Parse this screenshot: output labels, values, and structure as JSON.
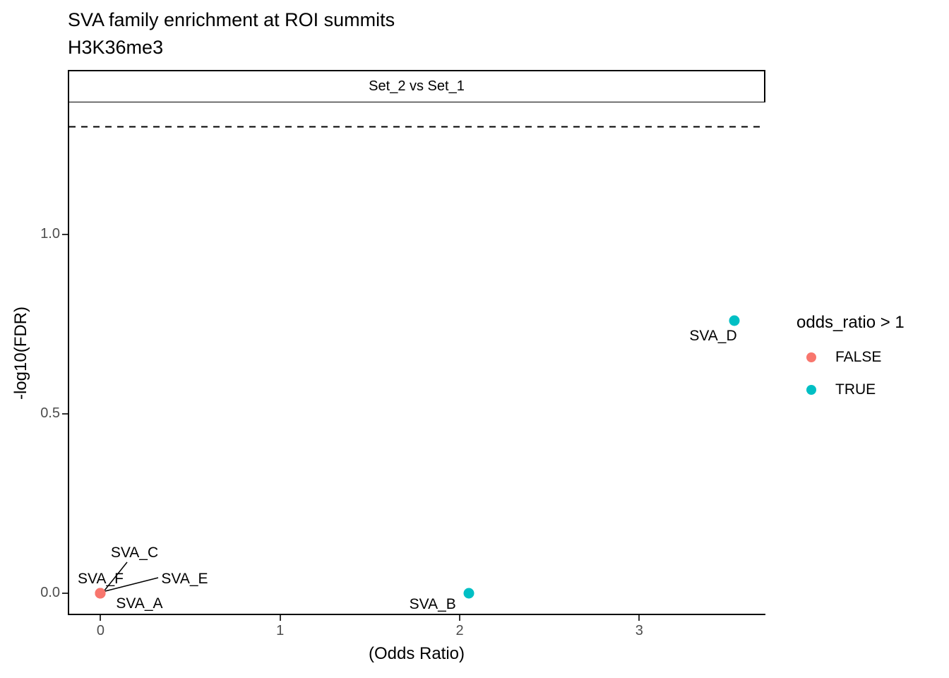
{
  "chart_data": {
    "type": "scatter",
    "title": "SVA family enrichment at ROI summits",
    "subtitle": "H3K36me3",
    "facet_label": "Set_2 vs Set_1",
    "xlabel": "(Odds Ratio)",
    "ylabel": "-log10(FDR)",
    "x_ticks": [
      {
        "value": 0,
        "label": "0"
      },
      {
        "value": 1,
        "label": "1"
      },
      {
        "value": 2,
        "label": "2"
      },
      {
        "value": 3,
        "label": "3"
      }
    ],
    "y_ticks": [
      {
        "value": 0.0,
        "label": "0.0"
      },
      {
        "value": 0.5,
        "label": "0.5"
      },
      {
        "value": 1.0,
        "label": "1.0"
      }
    ],
    "xlim": [
      -0.175,
      3.703
    ],
    "ylim": [
      -0.057,
      1.369
    ],
    "grid": "off",
    "legend_position": "right",
    "threshold_line": {
      "y": 1.301,
      "style": "dashed",
      "color": "#000000"
    },
    "points": [
      {
        "label": "SVA_A",
        "x": 0.0,
        "y": 0.0,
        "group": "FALSE"
      },
      {
        "label": "SVA_B",
        "x": 2.05,
        "y": 0.0,
        "group": "TRUE"
      },
      {
        "label": "SVA_C",
        "x": 0.0,
        "y": 0.0,
        "group": "FALSE"
      },
      {
        "label": "SVA_D",
        "x": 3.53,
        "y": 0.76,
        "group": "TRUE"
      },
      {
        "label": "SVA_E",
        "x": 0.0,
        "y": 0.0,
        "group": "FALSE"
      },
      {
        "label": "SVA_F",
        "x": 0.0,
        "y": 0.0,
        "group": "FALSE"
      }
    ],
    "legend": {
      "title": "odds_ratio > 1",
      "entries": [
        {
          "label": "FALSE",
          "color": "#F8766D"
        },
        {
          "label": "TRUE",
          "color": "#00BFC4"
        }
      ]
    },
    "colors": {
      "group_false": "#F8766D",
      "group_true": "#00BFC4",
      "axis_text": "#4D4D4D",
      "axis_line": "#000000"
    }
  }
}
